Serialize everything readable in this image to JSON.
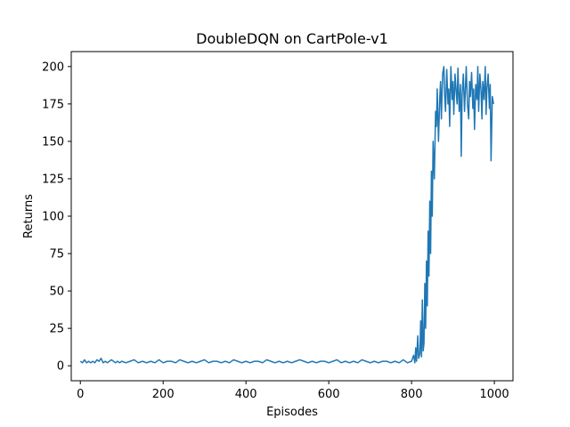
{
  "chart_data": {
    "type": "line",
    "title": "DoubleDQN on CartPole-v1",
    "xlabel": "Episodes",
    "ylabel": "Returns",
    "xlim": [
      -22,
      1045
    ],
    "ylim": [
      -10,
      210
    ],
    "x_ticks": [
      0,
      200,
      400,
      600,
      800,
      1000
    ],
    "x_tick_labels": [
      "0",
      "200",
      "400",
      "600",
      "800",
      "1000"
    ],
    "y_ticks": [
      0,
      25,
      50,
      75,
      100,
      125,
      150,
      175,
      200
    ],
    "y_tick_labels": [
      "0",
      "25",
      "50",
      "75",
      "100",
      "125",
      "150",
      "175",
      "200"
    ],
    "grid": false,
    "series": [
      {
        "color": "#1f77b4",
        "x": [
          0,
          5,
          10,
          15,
          20,
          25,
          30,
          35,
          40,
          45,
          50,
          55,
          60,
          65,
          70,
          75,
          80,
          85,
          90,
          95,
          100,
          110,
          120,
          130,
          140,
          150,
          160,
          170,
          180,
          190,
          200,
          210,
          220,
          230,
          240,
          250,
          260,
          270,
          280,
          290,
          300,
          310,
          320,
          330,
          340,
          350,
          360,
          370,
          380,
          390,
          400,
          410,
          420,
          430,
          440,
          450,
          460,
          470,
          480,
          490,
          500,
          510,
          520,
          530,
          540,
          550,
          560,
          570,
          580,
          590,
          600,
          610,
          620,
          630,
          640,
          650,
          660,
          670,
          680,
          690,
          700,
          710,
          720,
          730,
          740,
          750,
          760,
          770,
          780,
          790,
          800,
          805,
          808,
          810,
          812,
          815,
          817,
          820,
          822,
          824,
          826,
          828,
          830,
          832,
          834,
          836,
          838,
          840,
          842,
          844,
          846,
          848,
          850,
          852,
          855,
          858,
          860,
          862,
          865,
          868,
          870,
          872,
          875,
          878,
          880,
          882,
          885,
          888,
          890,
          892,
          895,
          898,
          900,
          902,
          905,
          908,
          910,
          912,
          915,
          918,
          920,
          922,
          925,
          928,
          930,
          932,
          935,
          938,
          940,
          942,
          945,
          948,
          950,
          952,
          955,
          958,
          960,
          962,
          965,
          968,
          970,
          972,
          975,
          978,
          980,
          982,
          985,
          988,
          990,
          992,
          995,
          998
        ],
        "values": [
          3,
          2,
          4,
          2,
          3,
          2,
          3,
          2,
          4,
          3,
          5,
          2,
          3,
          2,
          3,
          4,
          3,
          2,
          3,
          2,
          3,
          2,
          3,
          4,
          2,
          3,
          2,
          3,
          2,
          4,
          2,
          3,
          3,
          2,
          4,
          3,
          2,
          3,
          2,
          3,
          4,
          2,
          3,
          3,
          2,
          3,
          2,
          4,
          3,
          2,
          3,
          2,
          3,
          3,
          2,
          4,
          3,
          2,
          3,
          2,
          3,
          2,
          3,
          4,
          3,
          2,
          3,
          2,
          3,
          3,
          2,
          3,
          4,
          2,
          3,
          2,
          3,
          2,
          4,
          3,
          2,
          3,
          2,
          3,
          3,
          2,
          3,
          2,
          4,
          2,
          3,
          7,
          2,
          12,
          3,
          20,
          5,
          8,
          30,
          6,
          44,
          10,
          15,
          55,
          25,
          70,
          40,
          90,
          60,
          110,
          75,
          130,
          100,
          150,
          125,
          170,
          160,
          185,
          150,
          178,
          190,
          165,
          195,
          200,
          180,
          170,
          198,
          175,
          185,
          160,
          200,
          178,
          190,
          168,
          195,
          182,
          175,
          199,
          170,
          188,
          140,
          180,
          195,
          170,
          185,
          200,
          175,
          165,
          190,
          180,
          196,
          172,
          185,
          158,
          188,
          178,
          200,
          170,
          195,
          183,
          165,
          190,
          178,
          200,
          168,
          185,
          195,
          172,
          188,
          137,
          180,
          175
        ]
      }
    ]
  }
}
